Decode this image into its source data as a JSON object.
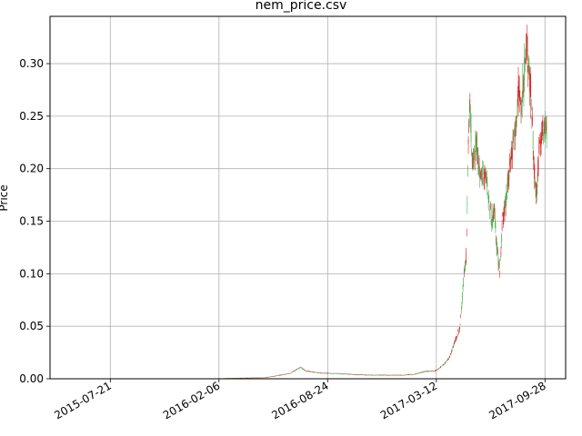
{
  "chart_data": {
    "type": "candlestick",
    "title": "nem_price.csv",
    "xlabel": "",
    "ylabel": "Price",
    "x_type": "date",
    "xlim": [
      "2015-04-01",
      "2017-11-05"
    ],
    "ylim": [
      0.0,
      0.345
    ],
    "x_ticks": [
      "2015-07-21",
      "2016-02-06",
      "2016-08-24",
      "2017-03-12",
      "2017-09-28"
    ],
    "y_ticks": [
      "0.00",
      "0.05",
      "0.10",
      "0.15",
      "0.20",
      "0.25",
      "0.30"
    ],
    "grid": true,
    "up_color": "#4caf50",
    "down_color": "#d62728",
    "series": [
      {
        "name": "",
        "points": [
          [
            "2015-04-01",
            0.0003
          ],
          [
            "2015-06-01",
            0.0003
          ],
          [
            "2015-09-01",
            0.0002
          ],
          [
            "2015-12-01",
            0.0002
          ],
          [
            "2016-02-01",
            0.0003
          ],
          [
            "2016-03-15",
            0.0008
          ],
          [
            "2016-05-01",
            0.0012
          ],
          [
            "2016-06-15",
            0.005
          ],
          [
            "2016-07-05",
            0.011
          ],
          [
            "2016-07-15",
            0.0075
          ],
          [
            "2016-08-10",
            0.0055
          ],
          [
            "2016-09-15",
            0.005
          ],
          [
            "2016-10-15",
            0.004
          ],
          [
            "2016-11-15",
            0.0035
          ],
          [
            "2016-12-15",
            0.0035
          ],
          [
            "2017-01-10",
            0.0035
          ],
          [
            "2017-02-01",
            0.0045
          ],
          [
            "2017-02-20",
            0.007
          ],
          [
            "2017-03-10",
            0.0075
          ],
          [
            "2017-03-25",
            0.013
          ],
          [
            "2017-04-05",
            0.02
          ],
          [
            "2017-04-15",
            0.035
          ],
          [
            "2017-04-25",
            0.05
          ],
          [
            "2017-05-02",
            0.1
          ],
          [
            "2017-05-06",
            0.115
          ],
          [
            "2017-05-10",
            0.23
          ],
          [
            "2017-05-13",
            0.255
          ],
          [
            "2017-05-18",
            0.2
          ],
          [
            "2017-05-25",
            0.225
          ],
          [
            "2017-06-02",
            0.19
          ],
          [
            "2017-06-10",
            0.2
          ],
          [
            "2017-06-16",
            0.17
          ],
          [
            "2017-06-22",
            0.15
          ],
          [
            "2017-06-27",
            0.16
          ],
          [
            "2017-07-02",
            0.12
          ],
          [
            "2017-07-07",
            0.105
          ],
          [
            "2017-07-12",
            0.15
          ],
          [
            "2017-07-18",
            0.17
          ],
          [
            "2017-07-25",
            0.2
          ],
          [
            "2017-08-01",
            0.225
          ],
          [
            "2017-08-06",
            0.25
          ],
          [
            "2017-08-10",
            0.27
          ],
          [
            "2017-08-15",
            0.26
          ],
          [
            "2017-08-20",
            0.285
          ],
          [
            "2017-08-25",
            0.32
          ],
          [
            "2017-08-30",
            0.29
          ],
          [
            "2017-09-04",
            0.255
          ],
          [
            "2017-09-08",
            0.2
          ],
          [
            "2017-09-12",
            0.175
          ],
          [
            "2017-09-17",
            0.215
          ],
          [
            "2017-09-22",
            0.23
          ],
          [
            "2017-09-27",
            0.245
          ],
          [
            "2017-10-01",
            0.23
          ]
        ]
      }
    ]
  }
}
